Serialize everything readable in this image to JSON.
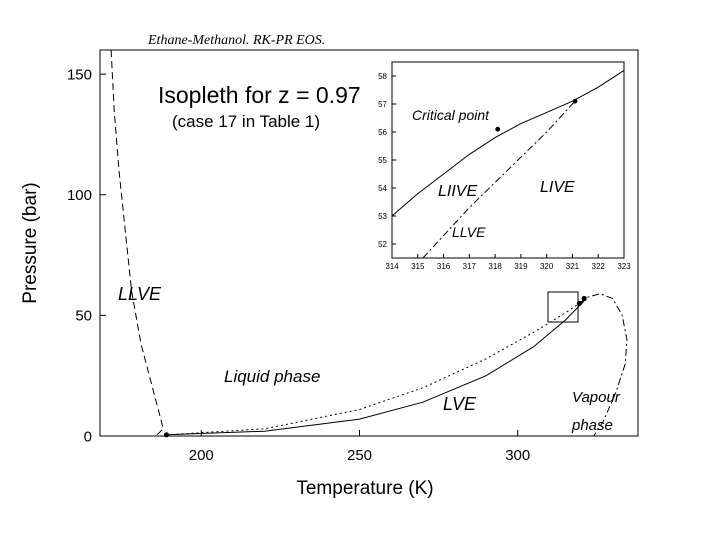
{
  "header": {
    "title": "Ethane-Methanol. RK-PR EOS."
  },
  "chart_data": [
    {
      "type": "line",
      "title": "",
      "xlabel": "Temperature (K)",
      "ylabel": "Pressure (bar)",
      "xlim": [
        168,
        338
      ],
      "ylim": [
        0,
        160
      ],
      "x_ticks": [
        200,
        250,
        300
      ],
      "y_ticks": [
        0,
        50,
        100,
        150
      ],
      "grid": false,
      "annotations": {
        "isopleth": "Isopleth for z = 0.97",
        "case": "(case 17 in Table 1)",
        "liquid_phase": "Liquid phase",
        "lve": "LVE",
        "llve": "LLVE",
        "vapour_line1": "Vapour",
        "vapour_line2": "phase"
      },
      "series": [
        {
          "style": "dashed",
          "points": [
            [
              186,
              0.5
            ],
            [
              188,
              3
            ],
            [
              185,
              18
            ],
            [
              181,
              38
            ],
            [
              178,
              60
            ],
            [
              176,
              85
            ],
            [
              174,
              110
            ],
            [
              172.5,
              135
            ],
            [
              171.5,
              160
            ]
          ]
        },
        {
          "style": "dotted",
          "points": [
            [
              189,
              0.5
            ],
            [
              220,
              3
            ],
            [
              250,
              11
            ],
            [
              270,
              20
            ],
            [
              290,
              32
            ],
            [
              305,
              43
            ],
            [
              315,
              51
            ],
            [
              319.5,
              55
            ]
          ]
        },
        {
          "style": "solid",
          "points": [
            [
              189,
              0.5
            ],
            [
              220,
              2
            ],
            [
              250,
              7
            ],
            [
              270,
              14
            ],
            [
              290,
              25
            ],
            [
              305,
              37
            ],
            [
              315,
              48
            ],
            [
              321,
              56
            ]
          ]
        },
        {
          "style": "dash-dot",
          "points": [
            [
              319.5,
              55
            ],
            [
              322,
              57.5
            ],
            [
              326,
              59
            ],
            [
              330,
              57
            ],
            [
              333,
              50
            ],
            [
              334.5,
              40
            ],
            [
              334,
              30
            ],
            [
              331,
              18
            ],
            [
              327,
              6
            ],
            [
              324,
              0
            ]
          ]
        }
      ],
      "markers": [
        [
          189,
          0.5
        ],
        [
          319.5,
          55
        ],
        [
          321,
          57
        ]
      ]
    },
    {
      "type": "line",
      "title": "",
      "xlabel": "",
      "ylabel": "",
      "xlim": [
        314,
        323
      ],
      "ylim": [
        51.5,
        58.5
      ],
      "x_ticks": [
        314,
        315,
        316,
        317,
        318,
        319,
        320,
        321,
        322,
        323
      ],
      "y_ticks": [
        52,
        53,
        54,
        55,
        56,
        57,
        58
      ],
      "grid": false,
      "annotations": {
        "critical_point": "Critical point",
        "lii_ve": "LIIVE",
        "li_ve": "LIVE",
        "llve": "LLVE"
      },
      "series": [
        {
          "style": "solid",
          "points": [
            [
              314,
              53
            ],
            [
              315,
              53.8
            ],
            [
              316,
              54.5
            ],
            [
              317,
              55.2
            ],
            [
              318,
              55.8
            ],
            [
              319,
              56.3
            ],
            [
              320,
              56.7
            ],
            [
              321,
              57.1
            ],
            [
              322,
              57.6
            ],
            [
              323,
              58.2
            ]
          ]
        },
        {
          "style": "dash-dot",
          "points": [
            [
              315.2,
              51.5
            ],
            [
              316,
              52.3
            ],
            [
              317,
              53.3
            ],
            [
              318,
              54.2
            ],
            [
              319,
              55.1
            ],
            [
              320,
              56.0
            ],
            [
              321.1,
              57.1
            ]
          ]
        }
      ],
      "markers": [
        [
          318.1,
          56.1
        ],
        [
          321.1,
          57.1
        ]
      ]
    }
  ]
}
